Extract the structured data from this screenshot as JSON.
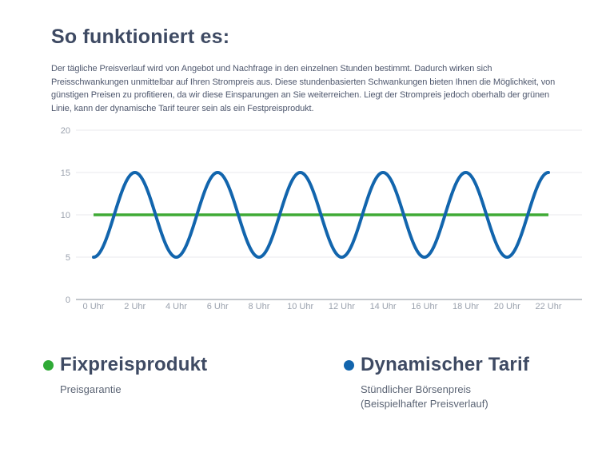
{
  "header": {
    "title": "So funktioniert es:"
  },
  "description": {
    "lines": [
      "Der tägliche Preisverlauf wird von Angebot und Nachfrage in den einzelnen Stunden bestimmt. Dadurch wirken sich",
      "Preisschwankungen unmittelbar auf Ihren Strompreis aus. Diese stundenbasierten Schwankungen bieten Ihnen die Möglichkeit, von",
      "günstigen Preisen zu profitieren, da wir diese Einsparungen an Sie weiterreichen. Liegt der Strompreis jedoch oberhalb der grünen",
      "Linie, kann der dynamische Tarif teurer sein als ein Festpreisprodukt."
    ]
  },
  "chart_data": {
    "type": "line",
    "title": "",
    "xlabel": "",
    "ylabel": "",
    "xlim": [
      0,
      22
    ],
    "ylim": [
      0,
      20
    ],
    "grid": true,
    "y_ticks": [
      0,
      5,
      10,
      15,
      20
    ],
    "x_tick_hours": [
      0,
      2,
      4,
      6,
      8,
      10,
      12,
      14,
      16,
      18,
      20,
      22
    ],
    "x_ticks": [
      "0 Uhr",
      "2 Uhr",
      "4 Uhr",
      "6 Uhr",
      "8 Uhr",
      "10 Uhr",
      "12 Uhr",
      "14 Uhr",
      "16 Uhr",
      "18 Uhr",
      "20 Uhr",
      "22 Uhr"
    ],
    "series": [
      {
        "name": "Fixpreisprodukt",
        "render": "constant",
        "value": 10,
        "color": "#3faa35",
        "x": [
          0,
          22
        ],
        "values": [
          10,
          10
        ]
      },
      {
        "name": "Dynamischer Tarif",
        "render": "wave",
        "wave": {
          "mean": 10,
          "amplitude": 5,
          "period_hours": 4,
          "min_at_hour": 0
        },
        "color": "#1265ad",
        "x": [
          0,
          1,
          2,
          3,
          4,
          5,
          6,
          7,
          8,
          9,
          10,
          11,
          12,
          13,
          14,
          15,
          16,
          17,
          18,
          19,
          20,
          21,
          22
        ],
        "values": [
          5,
          10,
          15,
          10,
          5,
          10,
          15,
          10,
          5,
          10,
          15,
          10,
          5,
          10,
          15,
          10,
          5,
          10,
          15,
          10,
          5,
          10,
          15
        ]
      }
    ],
    "colors": {
      "grid_line": "#e9eaec",
      "baseline": "#c2c6cb",
      "tick_label": "#9aa1ad"
    }
  },
  "legend": {
    "items": [
      {
        "label": "Fixpreisprodukt",
        "color": "#2faa36",
        "sublabels": [
          "Preisgarantie"
        ]
      },
      {
        "label": "Dynamischer Tarif",
        "color": "#1265ad",
        "sublabels": [
          "Stündlicher Börsenpreis",
          "(Beispielhafter Preisverlauf)"
        ]
      }
    ]
  }
}
